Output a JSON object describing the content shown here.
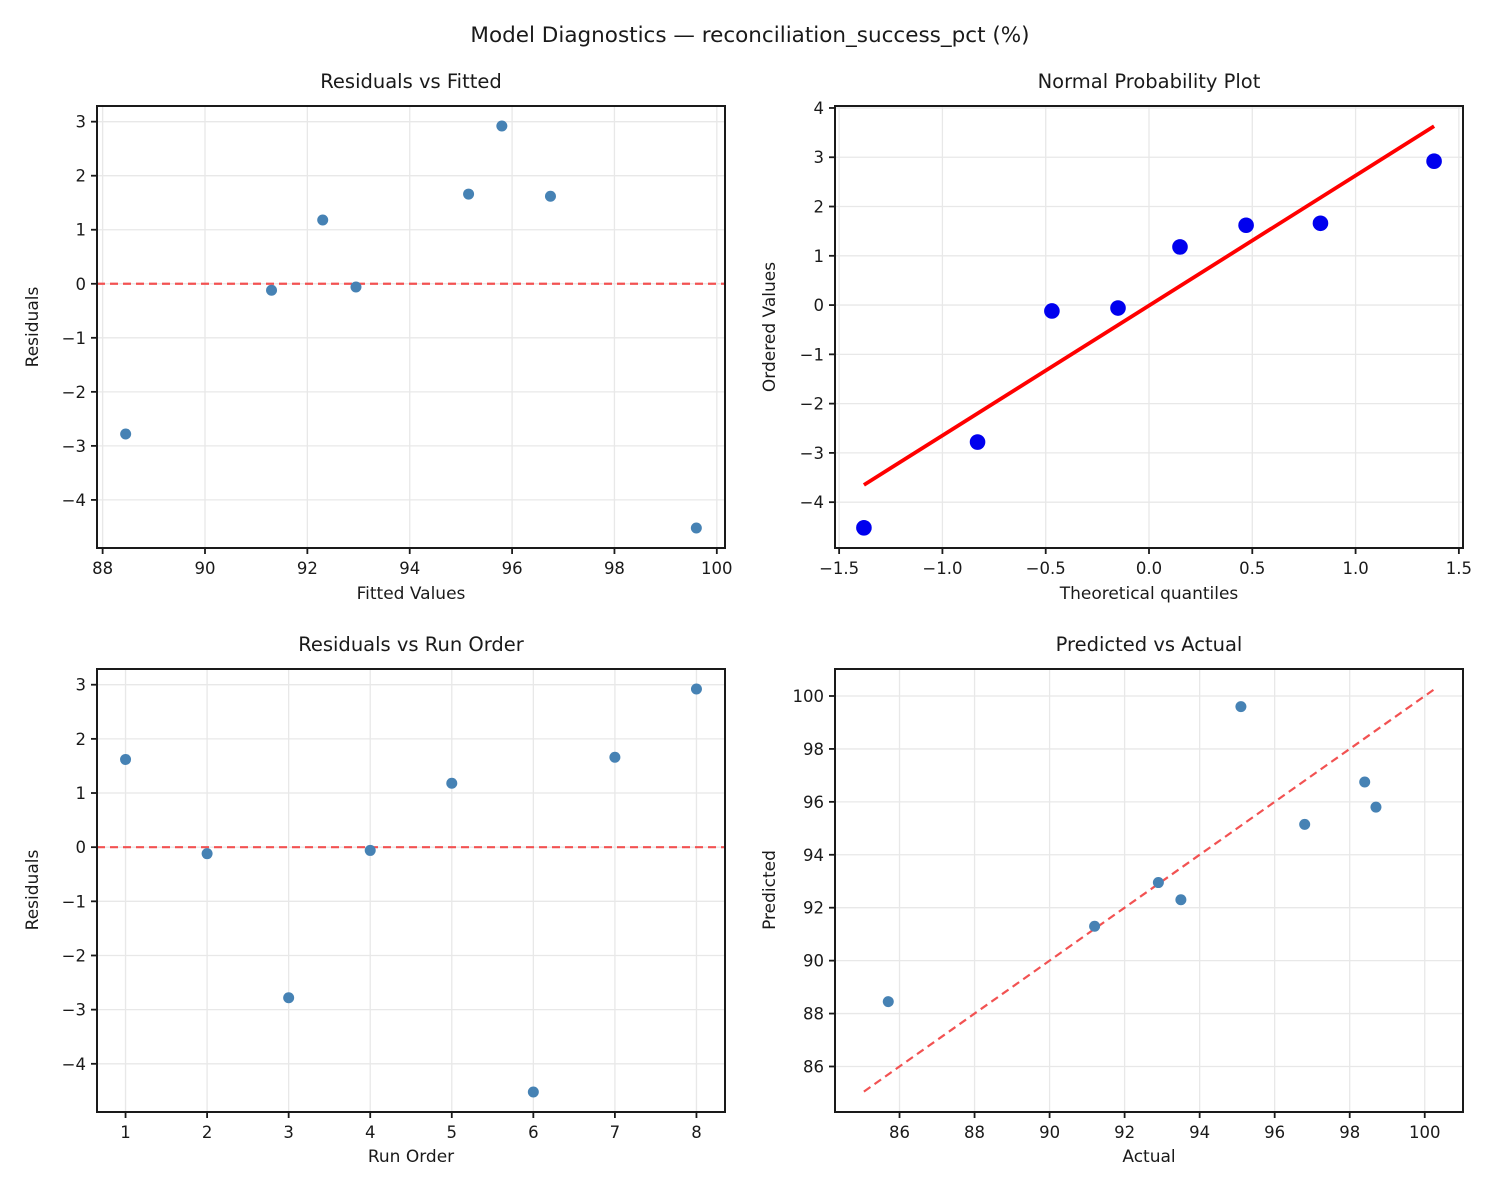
{
  "figure": {
    "suptitle": "Model Diagnostics — reconciliation_success_pct (%)",
    "colors": {
      "background": "#ffffff",
      "text": "#1a1a1a",
      "grid": "#e8e8e8",
      "spine": "#1a1a1a",
      "dashed_red": "#f25252",
      "fit_line_red": "#ff0000",
      "scatter_blue": "#4682b4",
      "probplot_blue": "#0000ee"
    }
  },
  "chart_data": [
    {
      "id": "residuals-vs-fitted",
      "type": "scatter",
      "title": "Residuals vs Fitted",
      "xlabel": "Fitted Values",
      "ylabel": "Residuals",
      "xlim": [
        87.89,
        100.16
      ],
      "ylim": [
        -4.89,
        3.29
      ],
      "grid": true,
      "xticks": [
        {
          "v": 88,
          "label": "88"
        },
        {
          "v": 90,
          "label": "90"
        },
        {
          "v": 92,
          "label": "92"
        },
        {
          "v": 94,
          "label": "94"
        },
        {
          "v": 96,
          "label": "96"
        },
        {
          "v": 98,
          "label": "98"
        },
        {
          "v": 100,
          "label": "100"
        }
      ],
      "yticks": [
        {
          "v": 3,
          "label": "3"
        },
        {
          "v": 2,
          "label": "2"
        },
        {
          "v": 1,
          "label": "1"
        },
        {
          "v": 0,
          "label": "0"
        },
        {
          "v": -1,
          "label": "−1"
        },
        {
          "v": -2,
          "label": "−2"
        },
        {
          "v": -3,
          "label": "−3"
        },
        {
          "v": -4,
          "label": "−4"
        }
      ],
      "marker": {
        "color": "#4682b4",
        "radius": 5.5
      },
      "points": [
        [
          88.45,
          -2.78
        ],
        [
          91.3,
          -0.12
        ],
        [
          92.3,
          1.18
        ],
        [
          92.95,
          -0.06
        ],
        [
          95.15,
          1.66
        ],
        [
          95.8,
          2.92
        ],
        [
          96.75,
          1.62
        ],
        [
          99.6,
          -4.52
        ]
      ],
      "lines": [
        {
          "name": "zero-line",
          "x1": 87.89,
          "y1": 0,
          "x2": 100.16,
          "y2": 0,
          "color": "#f25252",
          "width": 2.2,
          "dash": "8 5"
        }
      ]
    },
    {
      "id": "normal-probability-plot",
      "type": "scatter",
      "title": "Normal Probability Plot",
      "xlabel": "Theoretical quantiles",
      "ylabel": "Ordered Values",
      "xlim": [
        -1.52,
        1.52
      ],
      "ylim": [
        -4.93,
        4.04
      ],
      "grid": true,
      "xticks": [
        {
          "v": -1.5,
          "label": "−1.5"
        },
        {
          "v": -1.0,
          "label": "−1.0"
        },
        {
          "v": -0.5,
          "label": "−0.5"
        },
        {
          "v": 0.0,
          "label": "0.0"
        },
        {
          "v": 0.5,
          "label": "0.5"
        },
        {
          "v": 1.0,
          "label": "1.0"
        },
        {
          "v": 1.5,
          "label": "1.5"
        }
      ],
      "yticks": [
        {
          "v": 4,
          "label": "4"
        },
        {
          "v": 3,
          "label": "3"
        },
        {
          "v": 2,
          "label": "2"
        },
        {
          "v": 1,
          "label": "1"
        },
        {
          "v": 0,
          "label": "0"
        },
        {
          "v": -1,
          "label": "−1"
        },
        {
          "v": -2,
          "label": "−2"
        },
        {
          "v": -3,
          "label": "−3"
        },
        {
          "v": -4,
          "label": "−4"
        }
      ],
      "marker": {
        "color": "#0000ee",
        "radius": 7.8
      },
      "points": [
        [
          -1.38,
          -4.52
        ],
        [
          -0.83,
          -2.78
        ],
        [
          -0.47,
          -0.12
        ],
        [
          -0.15,
          -0.06
        ],
        [
          0.15,
          1.18
        ],
        [
          0.47,
          1.62
        ],
        [
          0.83,
          1.66
        ],
        [
          1.38,
          2.92
        ]
      ],
      "lines": [
        {
          "name": "fit-line",
          "x1": -1.38,
          "y1": -3.65,
          "x2": 1.38,
          "y2": 3.63,
          "color": "#ff0000",
          "width": 3.8,
          "dash": null
        }
      ]
    },
    {
      "id": "residuals-vs-run-order",
      "type": "scatter",
      "title": "Residuals vs Run Order",
      "xlabel": "Run Order",
      "ylabel": "Residuals",
      "xlim": [
        0.65,
        8.35
      ],
      "ylim": [
        -4.89,
        3.29
      ],
      "grid": true,
      "xticks": [
        {
          "v": 1,
          "label": "1"
        },
        {
          "v": 2,
          "label": "2"
        },
        {
          "v": 3,
          "label": "3"
        },
        {
          "v": 4,
          "label": "4"
        },
        {
          "v": 5,
          "label": "5"
        },
        {
          "v": 6,
          "label": "6"
        },
        {
          "v": 7,
          "label": "7"
        },
        {
          "v": 8,
          "label": "8"
        }
      ],
      "yticks": [
        {
          "v": 3,
          "label": "3"
        },
        {
          "v": 2,
          "label": "2"
        },
        {
          "v": 1,
          "label": "1"
        },
        {
          "v": 0,
          "label": "0"
        },
        {
          "v": -1,
          "label": "−1"
        },
        {
          "v": -2,
          "label": "−2"
        },
        {
          "v": -3,
          "label": "−3"
        },
        {
          "v": -4,
          "label": "−4"
        }
      ],
      "marker": {
        "color": "#4682b4",
        "radius": 5.5
      },
      "points": [
        [
          1,
          1.62
        ],
        [
          2,
          -0.12
        ],
        [
          3,
          -2.78
        ],
        [
          4,
          -0.06
        ],
        [
          5,
          1.18
        ],
        [
          6,
          -4.52
        ],
        [
          7,
          1.66
        ],
        [
          8,
          2.92
        ]
      ],
      "lines": [
        {
          "name": "zero-line",
          "x1": 0.65,
          "y1": 0,
          "x2": 8.35,
          "y2": 0,
          "color": "#f25252",
          "width": 2.2,
          "dash": "8 5"
        }
      ]
    },
    {
      "id": "predicted-vs-actual",
      "type": "scatter",
      "title": "Predicted vs Actual",
      "xlabel": "Actual",
      "ylabel": "Predicted",
      "xlim": [
        84.28,
        101.02
      ],
      "ylim": [
        84.28,
        101.02
      ],
      "grid": true,
      "xticks": [
        {
          "v": 86,
          "label": "86"
        },
        {
          "v": 88,
          "label": "88"
        },
        {
          "v": 90,
          "label": "90"
        },
        {
          "v": 92,
          "label": "92"
        },
        {
          "v": 94,
          "label": "94"
        },
        {
          "v": 96,
          "label": "96"
        },
        {
          "v": 98,
          "label": "98"
        },
        {
          "v": 100,
          "label": "100"
        }
      ],
      "yticks": [
        {
          "v": 100,
          "label": "100"
        },
        {
          "v": 98,
          "label": "98"
        },
        {
          "v": 96,
          "label": "96"
        },
        {
          "v": 94,
          "label": "94"
        },
        {
          "v": 92,
          "label": "92"
        },
        {
          "v": 90,
          "label": "90"
        },
        {
          "v": 88,
          "label": "88"
        },
        {
          "v": 86,
          "label": "86"
        }
      ],
      "marker": {
        "color": "#4682b4",
        "radius": 5.5
      },
      "points": [
        [
          85.7,
          88.45
        ],
        [
          91.2,
          91.3
        ],
        [
          92.9,
          92.95
        ],
        [
          93.5,
          92.3
        ],
        [
          95.1,
          99.6
        ],
        [
          96.8,
          95.15
        ],
        [
          98.4,
          96.75
        ],
        [
          98.7,
          95.8
        ]
      ],
      "lines": [
        {
          "name": "identity-line",
          "x1": 85.05,
          "y1": 85.05,
          "x2": 100.25,
          "y2": 100.25,
          "color": "#f25252",
          "width": 2.2,
          "dash": "8 5"
        }
      ]
    }
  ]
}
